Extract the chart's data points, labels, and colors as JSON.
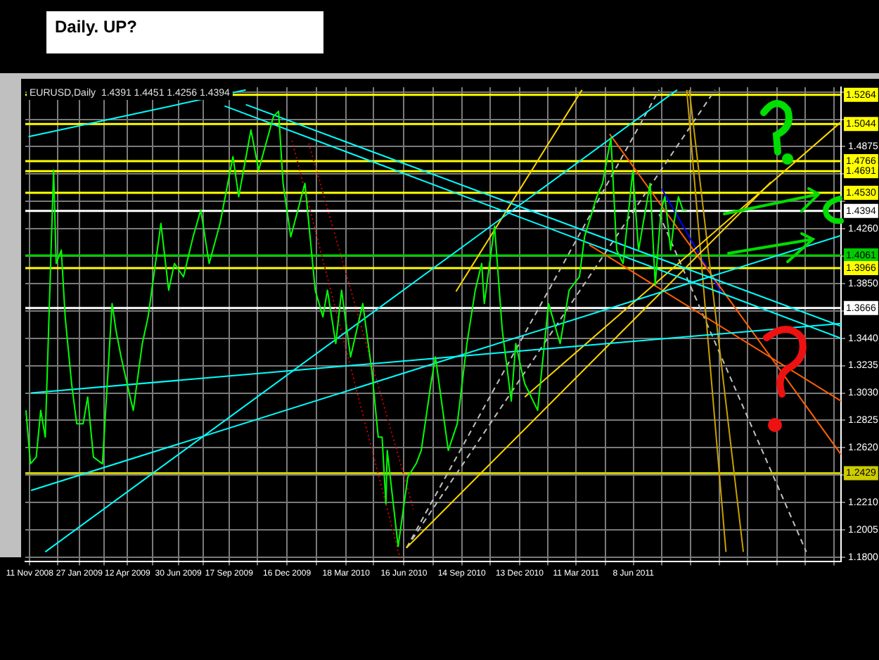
{
  "chart_data": {
    "type": "line",
    "title": "Daily. UP?",
    "subtitle": "EURUSD,Daily  1.4391 1.4451 1.4256 1.4394",
    "xlim": [
      "2008-11-04",
      "2012-04-26"
    ],
    "ylim": [
      1.177,
      1.532
    ],
    "xticks": [
      {
        "value": "2008-11-11",
        "label": "11 Nov 2008"
      },
      {
        "value": "2008-12-24",
        "label": null
      },
      {
        "value": "2009-01-27",
        "label": "27 Jan 2009"
      },
      {
        "value": "2009-03-06",
        "label": null
      },
      {
        "value": "2009-04-12",
        "label": "12 Apr 2009"
      },
      {
        "value": "2009-05-21",
        "label": null
      },
      {
        "value": "2009-06-30",
        "label": "30 Jun 2009"
      },
      {
        "value": "2009-08-08",
        "label": null
      },
      {
        "value": "2009-09-17",
        "label": "17 Sep 2009"
      },
      {
        "value": "2009-10-31",
        "label": null
      },
      {
        "value": "2009-12-16",
        "label": "16 Dec 2009"
      },
      {
        "value": "2010-01-31",
        "label": null
      },
      {
        "value": "2010-03-18",
        "label": "18 Mar 2010"
      },
      {
        "value": "2010-04-30",
        "label": null
      },
      {
        "value": "2010-06-16",
        "label": "16 Jun 2010"
      },
      {
        "value": "2010-07-31",
        "label": null
      },
      {
        "value": "2010-09-14",
        "label": "14 Sep 2010"
      },
      {
        "value": "2010-10-28",
        "label": null
      },
      {
        "value": "2010-12-13",
        "label": "13 Dec 2010"
      },
      {
        "value": "2011-01-26",
        "label": null
      },
      {
        "value": "2011-03-11",
        "label": "11 Mar 2011"
      },
      {
        "value": "2011-04-25",
        "label": null
      },
      {
        "value": "2011-06-08",
        "label": "8 Jun 2011"
      },
      {
        "value": "2011-07-22",
        "label": null
      },
      {
        "value": "2011-09-05",
        "label": null
      },
      {
        "value": "2011-10-20",
        "label": null
      },
      {
        "value": "2011-12-03",
        "label": null
      },
      {
        "value": "2012-01-17",
        "label": null
      },
      {
        "value": "2012-03-01",
        "label": null
      },
      {
        "value": "2012-04-15",
        "label": null
      }
    ],
    "yticks": [
      {
        "value": 1.18,
        "label": "1.1800"
      },
      1.2005,
      {
        "value": 1.221,
        "label": "1.2210"
      },
      {
        "value": 1.2415,
        "label": null
      },
      {
        "value": 1.262,
        "label": "1.2620"
      },
      1.2825,
      {
        "value": 1.303,
        "label": "1.3030"
      },
      1.3235,
      {
        "value": 1.344,
        "label": "1.3440"
      },
      {
        "value": 1.3645,
        "label": null
      },
      {
        "value": 1.385,
        "label": "1.3850"
      },
      {
        "value": 1.4055,
        "label": null
      },
      {
        "value": 1.426,
        "label": "1.4260"
      },
      {
        "value": 1.4465,
        "label": null
      },
      {
        "value": 1.467,
        "label": null
      },
      1.4875,
      {
        "value": 1.508,
        "label": null
      },
      {
        "value": 1.5285,
        "label": null
      }
    ],
    "grid": true,
    "legend": false,
    "marker": "none",
    "ref_lines": [
      {
        "axis": "y",
        "value": 1.5264,
        "label": "1.5264",
        "color": "#ffff00"
      },
      {
        "axis": "y",
        "value": 1.5044,
        "label": "1.5044",
        "color": "#ffff00"
      },
      {
        "axis": "y",
        "value": 1.4766,
        "label": "1.4766",
        "color": "#ffff00"
      },
      {
        "axis": "y",
        "value": 1.4691,
        "label": "1.4691",
        "color": "#ffff00"
      },
      {
        "axis": "y",
        "value": 1.453,
        "label": "1.4530",
        "color": "#ffff00"
      },
      {
        "axis": "y",
        "value": 1.4394,
        "label": "1.4394",
        "color": "#ffffff",
        "line_style": "solid"
      },
      {
        "axis": "y",
        "value": 1.4061,
        "label": "1.4061",
        "color": "#00cc00"
      },
      {
        "axis": "y",
        "value": 1.3966,
        "label": "1.3966",
        "color": "#ffff00"
      },
      {
        "axis": "y",
        "value": 1.3666,
        "label": "1.3666",
        "color": "#ffffff"
      },
      {
        "axis": "y",
        "value": 1.2429,
        "label": "1.2429",
        "color": "#cccc00"
      }
    ],
    "series": [
      {
        "color": "#00ff00",
        "line_style": "solid",
        "x": [
          "2008-11-05",
          "2008-11-12",
          "2008-11-21",
          "2008-11-28",
          "2008-12-05",
          "2008-12-18",
          "2008-12-22",
          "2008-12-30",
          "2009-01-05",
          "2009-01-15",
          "2009-01-23",
          "2009-02-02",
          "2009-02-09",
          "2009-02-18",
          "2009-03-04",
          "2009-03-19",
          "2009-03-25",
          "2009-04-02",
          "2009-04-16",
          "2009-04-21",
          "2009-05-05",
          "2009-05-14",
          "2009-06-03",
          "2009-06-15",
          "2009-06-24",
          "2009-07-08",
          "2009-07-23",
          "2009-08-04",
          "2009-08-17",
          "2009-09-03",
          "2009-09-23",
          "2009-10-02",
          "2009-10-21",
          "2009-11-02",
          "2009-11-25",
          "2009-12-03",
          "2009-12-10",
          "2009-12-22",
          "2010-01-13",
          "2010-01-29",
          "2010-02-10",
          "2010-02-17",
          "2010-03-02",
          "2010-03-11",
          "2010-03-25",
          "2010-04-13",
          "2010-04-27",
          "2010-05-07",
          "2010-05-13",
          "2010-05-19",
          "2010-05-21",
          "2010-06-07",
          "2010-06-22",
          "2010-07-05",
          "2010-07-13",
          "2010-07-28",
          "2010-08-04",
          "2010-08-24",
          "2010-09-07",
          "2010-09-22",
          "2010-10-05",
          "2010-10-15",
          "2010-10-19",
          "2010-11-04",
          "2010-11-16",
          "2010-11-30",
          "2010-12-07",
          "2010-12-16",
          "2010-12-21",
          "2011-01-10",
          "2011-01-27",
          "2011-02-14",
          "2011-02-28",
          "2011-03-16",
          "2011-03-24",
          "2011-04-12",
          "2011-04-21",
          "2011-05-04",
          "2011-05-13",
          "2011-05-23",
          "2011-06-07",
          "2011-06-16",
          "2011-07-04",
          "2011-07-12",
          "2011-07-21",
          "2011-07-27",
          "2011-08-05",
          "2011-08-10",
          "2011-08-17",
          "2011-08-24",
          "2011-08-30"
        ],
        "values": [
          1.29,
          1.25,
          1.255,
          1.29,
          1.27,
          1.47,
          1.4,
          1.41,
          1.36,
          1.31,
          1.28,
          1.28,
          1.3,
          1.255,
          1.25,
          1.37,
          1.35,
          1.33,
          1.3,
          1.29,
          1.34,
          1.36,
          1.43,
          1.38,
          1.4,
          1.39,
          1.42,
          1.44,
          1.4,
          1.43,
          1.48,
          1.45,
          1.5,
          1.47,
          1.51,
          1.514,
          1.46,
          1.42,
          1.46,
          1.38,
          1.36,
          1.38,
          1.34,
          1.38,
          1.33,
          1.37,
          1.32,
          1.27,
          1.27,
          1.22,
          1.26,
          1.188,
          1.24,
          1.25,
          1.26,
          1.31,
          1.33,
          1.26,
          1.28,
          1.34,
          1.38,
          1.4,
          1.37,
          1.428,
          1.35,
          1.297,
          1.34,
          1.32,
          1.31,
          1.29,
          1.37,
          1.34,
          1.38,
          1.39,
          1.42,
          1.45,
          1.46,
          1.494,
          1.41,
          1.4,
          1.469,
          1.41,
          1.46,
          1.384,
          1.44,
          1.45,
          1.41,
          1.43,
          1.45,
          1.44,
          1.44
        ]
      },
      {
        "color": "#00ffff",
        "line_style": "solid",
        "x": [
          "2008-11-09",
          "2009-10-13"
        ],
        "values": [
          1.495,
          1.53
        ]
      },
      {
        "color": "#00ffff",
        "line_style": "solid",
        "x": [
          "2009-10-13",
          "2012-04-26"
        ],
        "values": [
          1.519,
          1.353
        ]
      },
      {
        "color": "#00ffff",
        "line_style": "solid",
        "x": [
          "2009-09-10",
          "2012-04-26"
        ],
        "values": [
          1.518,
          1.344
        ]
      },
      {
        "color": "#00ffff",
        "line_style": "solid",
        "x": [
          "2008-12-05",
          "2011-08-15"
        ],
        "values": [
          1.184,
          1.53
        ]
      },
      {
        "color": "#00ffff",
        "line_style": "solid",
        "x": [
          "2008-11-13",
          "2012-04-26"
        ],
        "values": [
          1.23,
          1.421
        ]
      },
      {
        "color": "#00ffff",
        "line_style": "solid",
        "x": [
          "2008-11-13",
          "2012-04-26"
        ],
        "values": [
          1.303,
          1.355
        ]
      },
      {
        "color": "#ffd700",
        "line_style": "solid",
        "x": [
          "2010-06-20",
          "2012-01-08"
        ],
        "values": [
          1.187,
          1.461
        ]
      },
      {
        "color": "#ffd700",
        "line_style": "solid",
        "x": [
          "2010-12-21",
          "2012-04-26"
        ],
        "values": [
          1.3,
          1.506
        ]
      },
      {
        "color": "#ffd700",
        "line_style": "solid",
        "x": [
          "2010-09-05",
          "2011-03-20"
        ],
        "values": [
          1.379,
          1.53
        ]
      },
      {
        "color": "#c8a000",
        "line_style": "solid",
        "x": [
          "2011-08-30",
          "2011-10-30"
        ],
        "values": [
          1.53,
          1.184
        ]
      },
      {
        "color": "#c8a000",
        "line_style": "solid",
        "x": [
          "2011-09-03",
          "2011-11-26"
        ],
        "values": [
          1.53,
          1.184
        ]
      },
      {
        "color": "#ff6000",
        "line_style": "solid",
        "x": [
          "2011-05-02",
          "2012-04-26"
        ],
        "values": [
          1.497,
          1.257
        ]
      },
      {
        "color": "#ff6000",
        "line_style": "solid",
        "x": [
          "2011-03-31",
          "2012-04-26"
        ],
        "values": [
          1.414,
          1.297
        ]
      },
      {
        "color": "#0000ff",
        "line_style": "solid",
        "x": [
          "2011-07-22",
          "2011-10-24"
        ],
        "values": [
          1.456,
          1.377
        ]
      },
      {
        "color": "#cc0000",
        "line_style": "dotted",
        "x": [
          "2009-12-24",
          "2010-06-10"
        ],
        "values": [
          1.492,
          1.179
        ]
      },
      {
        "color": "#cc0000",
        "line_style": "dotted",
        "x": [
          "2010-01-19",
          "2010-07-01"
        ],
        "values": [
          1.49,
          1.216
        ]
      },
      {
        "color": "#c0c0c0",
        "line_style": "dashed",
        "x": [
          "2010-06-20",
          "2011-07-18"
        ],
        "values": [
          1.187,
          1.53
        ]
      },
      {
        "color": "#c0c0c0",
        "line_style": "dashed",
        "x": [
          "2010-06-20",
          "2011-10-13"
        ],
        "values": [
          1.187,
          1.53
        ]
      },
      {
        "color": "#c0c0c0",
        "line_style": "dashed",
        "x": [
          "2011-07-18",
          "2012-03-03"
        ],
        "values": [
          1.437,
          1.184
        ]
      }
    ]
  }
}
